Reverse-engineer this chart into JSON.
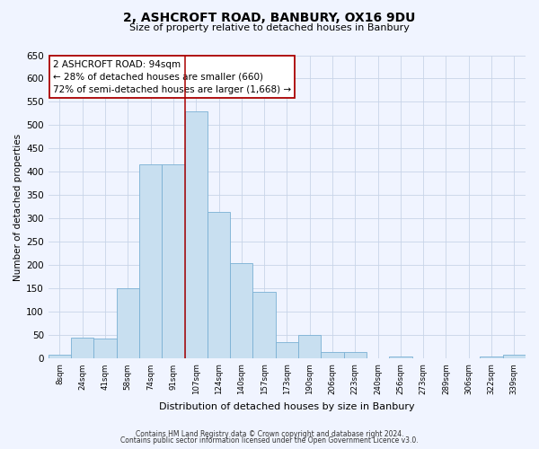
{
  "title": "2, ASHCROFT ROAD, BANBURY, OX16 9DU",
  "subtitle": "Size of property relative to detached houses in Banbury",
  "xlabel": "Distribution of detached houses by size in Banbury",
  "ylabel": "Number of detached properties",
  "bar_labels": [
    "8sqm",
    "24sqm",
    "41sqm",
    "58sqm",
    "74sqm",
    "91sqm",
    "107sqm",
    "124sqm",
    "140sqm",
    "157sqm",
    "173sqm",
    "190sqm",
    "206sqm",
    "223sqm",
    "240sqm",
    "256sqm",
    "273sqm",
    "289sqm",
    "306sqm",
    "322sqm",
    "339sqm"
  ],
  "bar_values": [
    8,
    45,
    43,
    150,
    417,
    417,
    530,
    315,
    205,
    143,
    35,
    50,
    15,
    14,
    0,
    5,
    0,
    0,
    0,
    5,
    8
  ],
  "bar_color": "#c8dff0",
  "bar_edge_color": "#7ab0d4",
  "vline_x_index": 5.5,
  "vline_color": "#aa0000",
  "annotation_line1": "2 ASHCROFT ROAD: 94sqm",
  "annotation_line2": "← 28% of detached houses are smaller (660)",
  "annotation_line3": "72% of semi-detached houses are larger (1,668) →",
  "annotation_box_color": "white",
  "annotation_box_edge": "#aa0000",
  "ylim": [
    0,
    650
  ],
  "yticks": [
    0,
    50,
    100,
    150,
    200,
    250,
    300,
    350,
    400,
    450,
    500,
    550,
    600,
    650
  ],
  "footer_line1": "Contains HM Land Registry data © Crown copyright and database right 2024.",
  "footer_line2": "Contains public sector information licensed under the Open Government Licence v3.0.",
  "bg_color": "#f0f4ff",
  "grid_color": "#c8d4e8"
}
